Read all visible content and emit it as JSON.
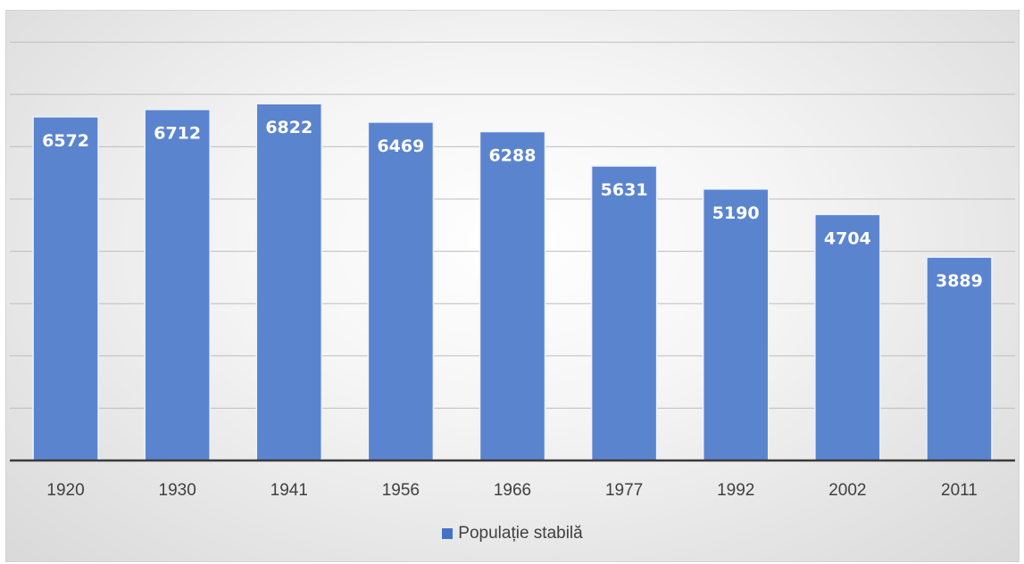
{
  "chart_data": {
    "type": "bar",
    "categories": [
      "1920",
      "1930",
      "1941",
      "1956",
      "1966",
      "1977",
      "1992",
      "2002",
      "2011"
    ],
    "series": [
      {
        "name": "Populație stabilă",
        "values": [
          6572,
          6712,
          6822,
          6469,
          6288,
          5631,
          5190,
          4704,
          3889
        ],
        "color": "#5b84cf"
      }
    ],
    "data_labels": [
      "6572",
      "6712",
      "6822",
      "6469",
      "6288",
      "5631",
      "5190",
      "4704",
      "3889"
    ],
    "title": "",
    "xlabel": "",
    "ylabel": "",
    "ylim": [
      0,
      8000
    ],
    "y_gridline_step": 1000,
    "grid": true,
    "legend_position": "bottom",
    "y_tick_labels_visible": false
  },
  "legend": {
    "label": "Populație stabilă",
    "swatch_color": "#4472c4"
  }
}
